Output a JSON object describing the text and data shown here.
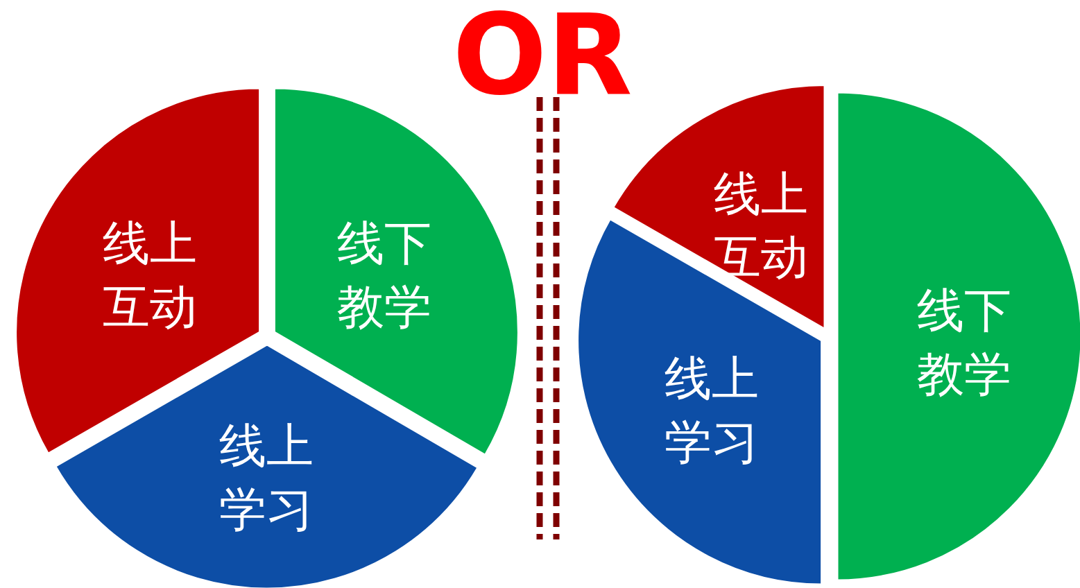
{
  "chart_data": [
    {
      "type": "pie",
      "categories": [
        "线下教学",
        "线上学习",
        "线上互动"
      ],
      "values": [
        33.4,
        33.3,
        33.3
      ],
      "colors": [
        "#00b050",
        "#0d4ea6",
        "#c00000"
      ]
    },
    {
      "type": "other",
      "title": "OR"
    },
    {
      "type": "pie",
      "categories": [
        "线下教学",
        "线上学习",
        "线上互动"
      ],
      "values": [
        50,
        33.3,
        16.7
      ],
      "colors": [
        "#00b050",
        "#0d4ea6",
        "#c00000"
      ]
    }
  ]
}
